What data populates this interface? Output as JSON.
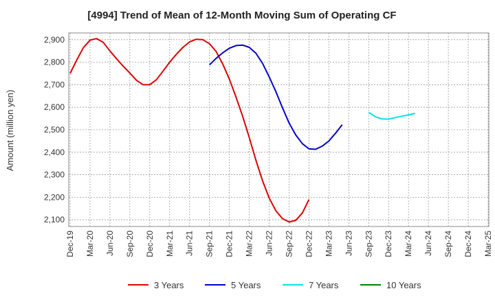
{
  "chart_data": {
    "type": "line",
    "title": "[4994]  Trend of Mean of 12-Month Moving Sum of Operating CF",
    "xlabel": "",
    "ylabel": "Amount (million yen)",
    "ylim": [
      2070,
      2930
    ],
    "y_ticks": [
      2100,
      2200,
      2300,
      2400,
      2500,
      2600,
      2700,
      2800,
      2900
    ],
    "y_tick_labels": [
      "2,100",
      "2,200",
      "2,300",
      "2,400",
      "2,500",
      "2,600",
      "2,700",
      "2,800",
      "2,900"
    ],
    "x_tick_labels": [
      "Dec-19",
      "Mar-20",
      "Jun-20",
      "Sep-20",
      "Dec-20",
      "Mar-21",
      "Jun-21",
      "Sep-21",
      "Dec-21",
      "Mar-22",
      "Jun-22",
      "Sep-22",
      "Dec-22",
      "Mar-23",
      "Jun-23",
      "Sep-23",
      "Dec-23",
      "Mar-24",
      "Jun-24",
      "Sep-24",
      "Dec-24",
      "Mar-25"
    ],
    "grid": true,
    "legend_position": "bottom",
    "series": [
      {
        "name": "3 Years",
        "color": "#dd0000",
        "start_index": 0,
        "values": [
          2750,
          2810,
          2865,
          2898,
          2905,
          2888,
          2850,
          2815,
          2782,
          2752,
          2720,
          2700,
          2700,
          2722,
          2760,
          2800,
          2835,
          2866,
          2890,
          2902,
          2900,
          2882,
          2848,
          2792,
          2725,
          2645,
          2560,
          2465,
          2365,
          2273,
          2197,
          2140,
          2105,
          2090,
          2097,
          2130,
          2190
        ]
      },
      {
        "name": "5 Years",
        "color": "#0000cc",
        "start_index": 21,
        "values": [
          2788,
          2817,
          2842,
          2862,
          2874,
          2876,
          2866,
          2840,
          2795,
          2735,
          2670,
          2598,
          2530,
          2477,
          2438,
          2415,
          2413,
          2427,
          2450,
          2484,
          2522
        ]
      },
      {
        "name": "7 Years",
        "color": "#00e5e5",
        "start_index": 45,
        "values": [
          2577,
          2558,
          2548,
          2547,
          2554,
          2560,
          2566,
          2573
        ]
      },
      {
        "name": "10 Years",
        "color": "#008000",
        "start_index": 0,
        "values": []
      }
    ]
  }
}
